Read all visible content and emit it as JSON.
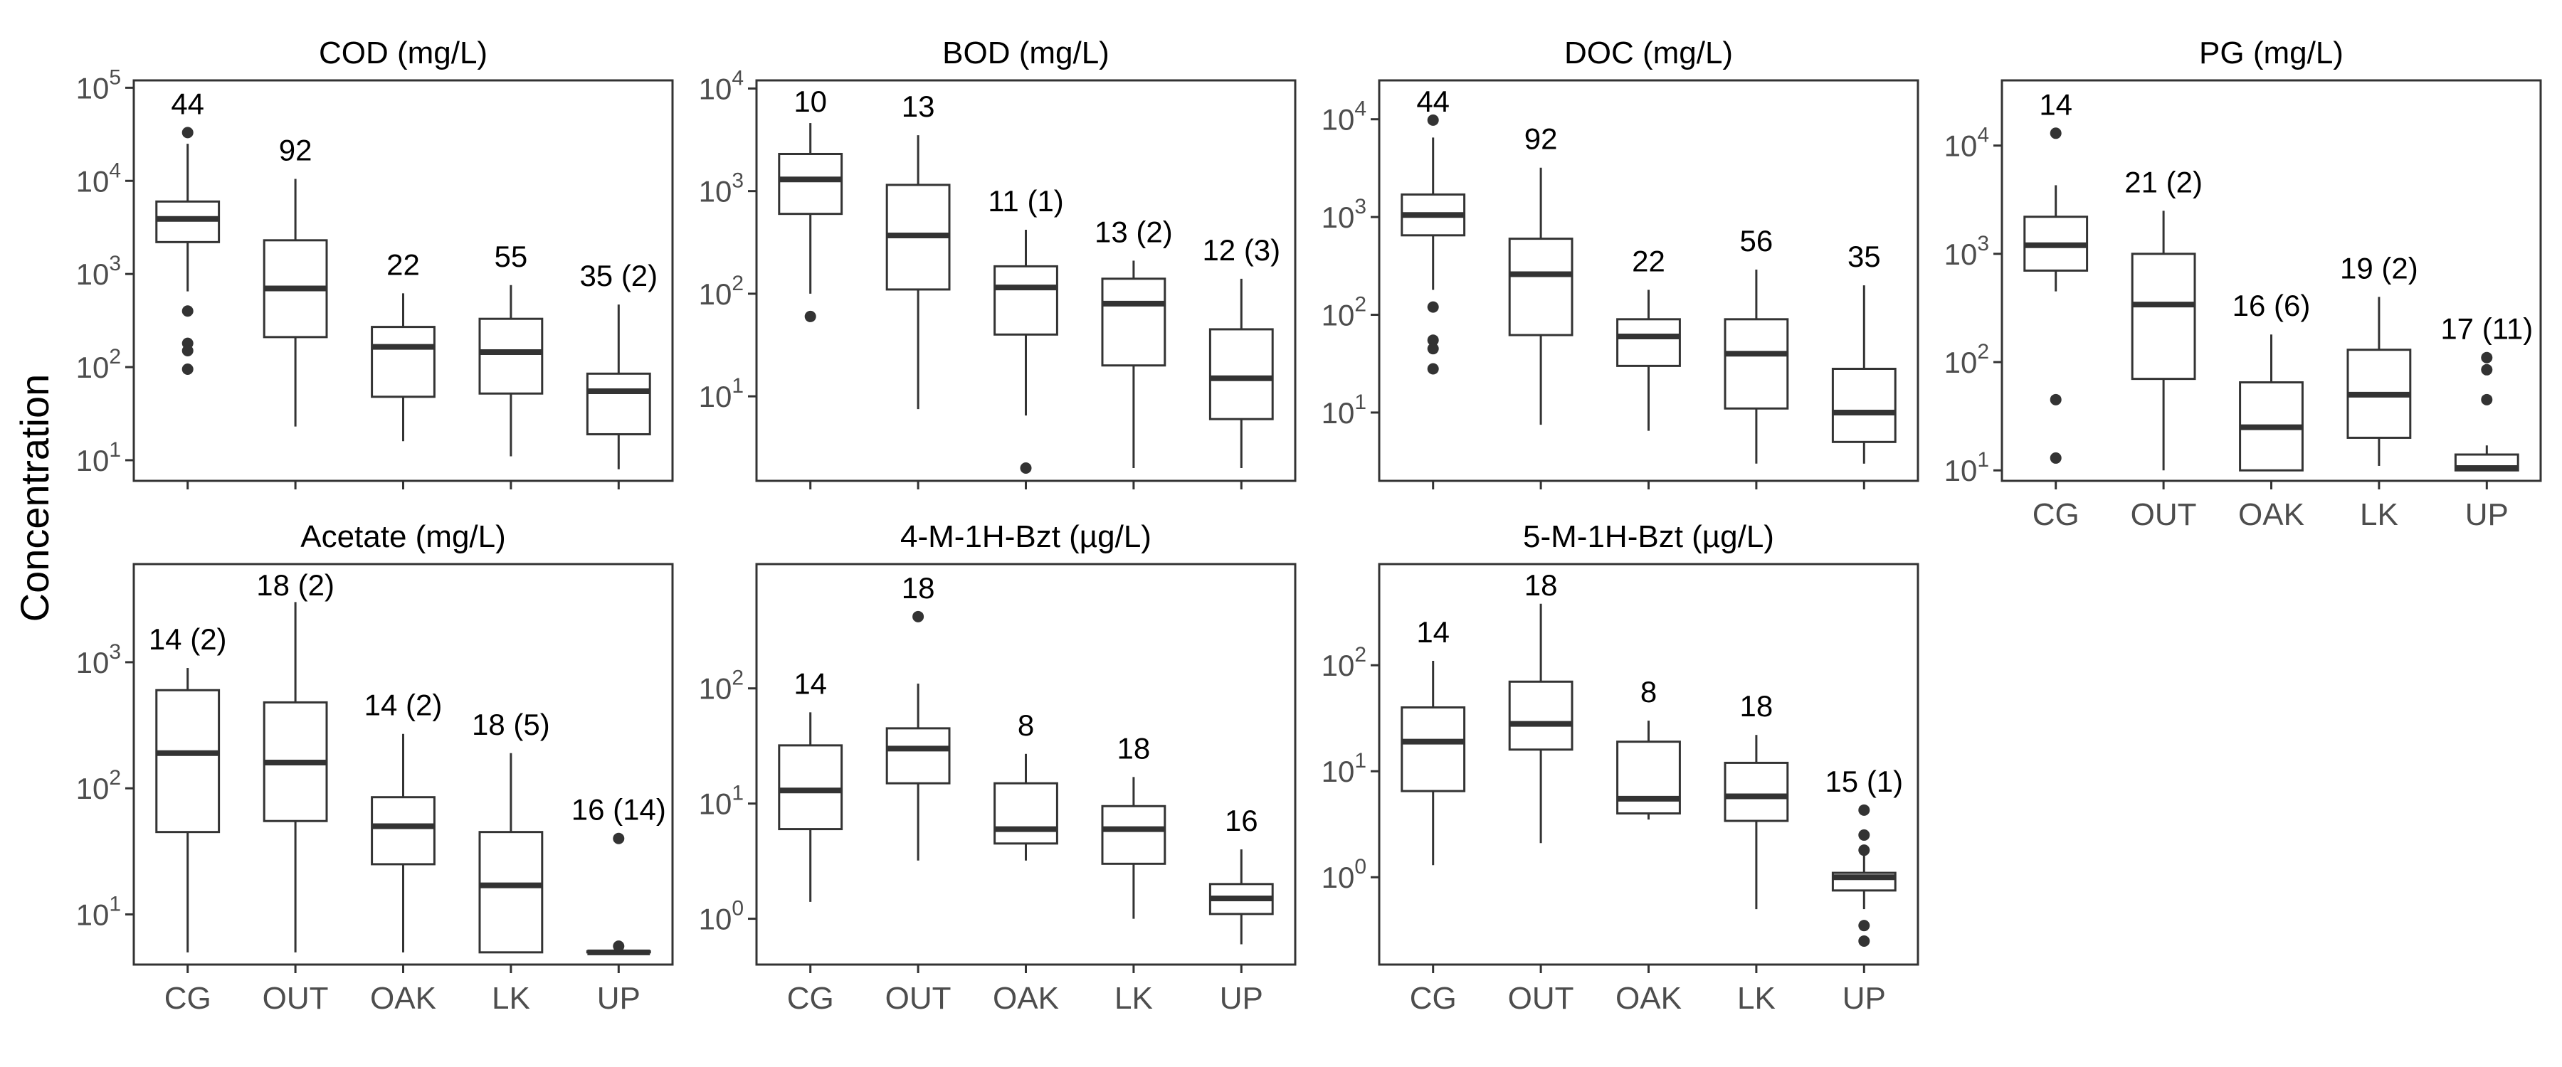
{
  "figure": {
    "ylabel": "Concentration",
    "categories": [
      "CG",
      "OUT",
      "OAK",
      "LK",
      "UP"
    ],
    "colors": {
      "box_line": "#333333",
      "median": "#333333",
      "frame": "#333333",
      "text": "#000000",
      "tick_text": "#4d4d4d",
      "background": "#ffffff"
    }
  },
  "chart_data": [
    {
      "type": "box",
      "title": "COD (mg/L)",
      "categories": [
        "CG",
        "OUT",
        "OAK",
        "LK",
        "UP"
      ],
      "scale": "log10",
      "ylim": [
        6,
        120000
      ],
      "yticks": [
        10,
        100,
        1000,
        10000,
        100000
      ],
      "ytick_labels": [
        [
          "10",
          "1"
        ],
        [
          "10",
          "2"
        ],
        [
          "10",
          "3"
        ],
        [
          "10",
          "4"
        ],
        [
          "10",
          "5"
        ]
      ],
      "show_x_labels": false,
      "boxes": [
        {
          "category": "CG",
          "label": "44",
          "whisker_low": 650,
          "q1": 2200,
          "median": 3900,
          "q3": 6000,
          "whisker_high": 25000,
          "outliers": [
            33000,
            400,
            180,
            150,
            95
          ]
        },
        {
          "category": "OUT",
          "label": "92",
          "whisker_low": 23,
          "q1": 210,
          "median": 700,
          "q3": 2300,
          "whisker_high": 10500,
          "outliers": []
        },
        {
          "category": "OAK",
          "label": "22",
          "whisker_low": 16,
          "q1": 48,
          "median": 165,
          "q3": 270,
          "whisker_high": 620,
          "outliers": []
        },
        {
          "category": "LK",
          "label": "55",
          "whisker_low": 11,
          "q1": 52,
          "median": 145,
          "q3": 330,
          "whisker_high": 760,
          "outliers": []
        },
        {
          "category": "UP",
          "label": "35 (2)",
          "whisker_low": 8,
          "q1": 19,
          "median": 55,
          "q3": 85,
          "whisker_high": 470,
          "outliers": []
        }
      ]
    },
    {
      "type": "box",
      "title": "BOD (mg/L)",
      "categories": [
        "CG",
        "OUT",
        "OAK",
        "LK",
        "UP"
      ],
      "scale": "log10",
      "ylim": [
        1.5,
        12000
      ],
      "yticks": [
        10,
        100,
        1000,
        10000
      ],
      "ytick_labels": [
        [
          "10",
          "1"
        ],
        [
          "10",
          "2"
        ],
        [
          "10",
          "3"
        ],
        [
          "10",
          "4"
        ]
      ],
      "show_x_labels": false,
      "boxes": [
        {
          "category": "CG",
          "label": "10",
          "whisker_low": 100,
          "q1": 600,
          "median": 1300,
          "q3": 2300,
          "whisker_high": 4600,
          "outliers": [
            60
          ]
        },
        {
          "category": "OUT",
          "label": "13",
          "whisker_low": 7.5,
          "q1": 110,
          "median": 370,
          "q3": 1150,
          "whisker_high": 3500,
          "outliers": []
        },
        {
          "category": "OAK",
          "label": "11 (1)",
          "whisker_low": 6.5,
          "q1": 40,
          "median": 115,
          "q3": 185,
          "whisker_high": 420,
          "outliers": [
            2
          ]
        },
        {
          "category": "LK",
          "label": "13 (2)",
          "whisker_low": 2,
          "q1": 20,
          "median": 80,
          "q3": 140,
          "whisker_high": 210,
          "outliers": []
        },
        {
          "category": "UP",
          "label": "12 (3)",
          "whisker_low": 2,
          "q1": 6,
          "median": 15,
          "q3": 45,
          "whisker_high": 140,
          "outliers": []
        }
      ]
    },
    {
      "type": "box",
      "title": "DOC (mg/L)",
      "categories": [
        "CG",
        "OUT",
        "OAK",
        "LK",
        "UP"
      ],
      "scale": "log10",
      "ylim": [
        2,
        25000
      ],
      "yticks": [
        10,
        100,
        1000,
        10000
      ],
      "ytick_labels": [
        [
          "10",
          "1"
        ],
        [
          "10",
          "2"
        ],
        [
          "10",
          "3"
        ],
        [
          "10",
          "4"
        ]
      ],
      "show_x_labels": false,
      "boxes": [
        {
          "category": "CG",
          "label": "44",
          "whisker_low": 180,
          "q1": 650,
          "median": 1050,
          "q3": 1700,
          "whisker_high": 6500,
          "outliers": [
            9800,
            120,
            55,
            45,
            28
          ]
        },
        {
          "category": "OUT",
          "label": "92",
          "whisker_low": 7.5,
          "q1": 62,
          "median": 260,
          "q3": 600,
          "whisker_high": 3200,
          "outliers": []
        },
        {
          "category": "OAK",
          "label": "22",
          "whisker_low": 6.5,
          "q1": 30,
          "median": 60,
          "q3": 90,
          "whisker_high": 180,
          "outliers": []
        },
        {
          "category": "LK",
          "label": "56",
          "whisker_low": 3,
          "q1": 11,
          "median": 40,
          "q3": 90,
          "whisker_high": 290,
          "outliers": []
        },
        {
          "category": "UP",
          "label": "35",
          "whisker_low": 3,
          "q1": 5,
          "median": 10,
          "q3": 28,
          "whisker_high": 200,
          "outliers": []
        }
      ]
    },
    {
      "type": "box",
      "title": "PG (mg/L)",
      "categories": [
        "CG",
        "OUT",
        "OAK",
        "LK",
        "UP"
      ],
      "scale": "log10",
      "ylim": [
        8,
        40000
      ],
      "yticks": [
        10,
        100,
        1000,
        10000
      ],
      "ytick_labels": [
        [
          "10",
          "1"
        ],
        [
          "10",
          "2"
        ],
        [
          "10",
          "3"
        ],
        [
          "10",
          "4"
        ]
      ],
      "show_x_labels": true,
      "boxes": [
        {
          "category": "CG",
          "label": "14",
          "whisker_low": 450,
          "q1": 700,
          "median": 1200,
          "q3": 2200,
          "whisker_high": 4300,
          "outliers": [
            13000,
            45,
            13
          ]
        },
        {
          "category": "OUT",
          "label": "21 (2)",
          "whisker_low": 10,
          "q1": 70,
          "median": 340,
          "q3": 1000,
          "whisker_high": 2500,
          "outliers": []
        },
        {
          "category": "OAK",
          "label": "16 (6)",
          "whisker_low": 10,
          "q1": 10,
          "median": 25,
          "q3": 65,
          "whisker_high": 180,
          "outliers": []
        },
        {
          "category": "LK",
          "label": "19 (2)",
          "whisker_low": 11,
          "q1": 20,
          "median": 50,
          "q3": 130,
          "whisker_high": 400,
          "outliers": []
        },
        {
          "category": "UP",
          "label": "17 (11)",
          "whisker_low": 10,
          "q1": 10,
          "median": 10.5,
          "q3": 14,
          "whisker_high": 17,
          "outliers": [
            110,
            85,
            45
          ]
        }
      ]
    },
    {
      "type": "box",
      "title": "Acetate (mg/L)",
      "categories": [
        "CG",
        "OUT",
        "OAK",
        "LK",
        "UP"
      ],
      "scale": "log10",
      "ylim": [
        4,
        6000
      ],
      "yticks": [
        10,
        100,
        1000
      ],
      "ytick_labels": [
        [
          "10",
          "1"
        ],
        [
          "10",
          "2"
        ],
        [
          "10",
          "3"
        ]
      ],
      "show_x_labels": true,
      "boxes": [
        {
          "category": "CG",
          "label": "14 (2)",
          "whisker_low": 5,
          "q1": 45,
          "median": 190,
          "q3": 600,
          "whisker_high": 900,
          "outliers": []
        },
        {
          "category": "OUT",
          "label": "18 (2)",
          "whisker_low": 5,
          "q1": 55,
          "median": 160,
          "q3": 480,
          "whisker_high": 3000,
          "outliers": []
        },
        {
          "category": "OAK",
          "label": "14 (2)",
          "whisker_low": 5,
          "q1": 25,
          "median": 50,
          "q3": 85,
          "whisker_high": 270,
          "outliers": []
        },
        {
          "category": "LK",
          "label": "18 (5)",
          "whisker_low": 5,
          "q1": 5,
          "median": 17,
          "q3": 45,
          "whisker_high": 190,
          "outliers": []
        },
        {
          "category": "UP",
          "label": "16 (14)",
          "whisker_low": 5,
          "q1": 5,
          "median": 5,
          "q3": 5.1,
          "whisker_high": 5.2,
          "outliers": [
            40,
            5.6
          ]
        }
      ]
    },
    {
      "type": "box",
      "title": "4-M-1H-Bzt (µg/L)",
      "categories": [
        "CG",
        "OUT",
        "OAK",
        "LK",
        "UP"
      ],
      "scale": "log10",
      "ylim": [
        0.4,
        1200
      ],
      "yticks": [
        1,
        10,
        100
      ],
      "ytick_labels": [
        [
          "10",
          "0"
        ],
        [
          "10",
          "1"
        ],
        [
          "10",
          "2"
        ]
      ],
      "show_x_labels": true,
      "boxes": [
        {
          "category": "CG",
          "label": "14",
          "whisker_low": 1.4,
          "q1": 6,
          "median": 13,
          "q3": 32,
          "whisker_high": 62,
          "outliers": []
        },
        {
          "category": "OUT",
          "label": "18",
          "whisker_low": 3.2,
          "q1": 15,
          "median": 30,
          "q3": 45,
          "whisker_high": 110,
          "outliers": [
            420
          ]
        },
        {
          "category": "OAK",
          "label": "8",
          "whisker_low": 3.2,
          "q1": 4.5,
          "median": 6,
          "q3": 15,
          "whisker_high": 27,
          "outliers": []
        },
        {
          "category": "LK",
          "label": "18",
          "whisker_low": 1,
          "q1": 3,
          "median": 6,
          "q3": 9.5,
          "whisker_high": 17,
          "outliers": []
        },
        {
          "category": "UP",
          "label": "16",
          "whisker_low": 0.6,
          "q1": 1.1,
          "median": 1.5,
          "q3": 2,
          "whisker_high": 4,
          "outliers": []
        }
      ]
    },
    {
      "type": "box",
      "title": "5-M-1H-Bzt (µg/L)",
      "categories": [
        "CG",
        "OUT",
        "OAK",
        "LK",
        "UP"
      ],
      "scale": "log10",
      "ylim": [
        0.15,
        900
      ],
      "yticks": [
        1,
        10,
        100
      ],
      "ytick_labels": [
        [
          "10",
          "0"
        ],
        [
          "10",
          "1"
        ],
        [
          "10",
          "2"
        ]
      ],
      "show_x_labels": true,
      "boxes": [
        {
          "category": "CG",
          "label": "14",
          "whisker_low": 1.3,
          "q1": 6.5,
          "median": 19,
          "q3": 40,
          "whisker_high": 110,
          "outliers": []
        },
        {
          "category": "OUT",
          "label": "18",
          "whisker_low": 2.1,
          "q1": 16,
          "median": 28,
          "q3": 70,
          "whisker_high": 380,
          "outliers": []
        },
        {
          "category": "OAK",
          "label": "8",
          "whisker_low": 3.5,
          "q1": 4,
          "median": 5.5,
          "q3": 19,
          "whisker_high": 30,
          "outliers": []
        },
        {
          "category": "LK",
          "label": "18",
          "whisker_low": 0.5,
          "q1": 3.4,
          "median": 5.8,
          "q3": 12,
          "whisker_high": 22,
          "outliers": []
        },
        {
          "category": "UP",
          "label": "15 (1)",
          "whisker_low": 0.5,
          "q1": 0.75,
          "median": 1.0,
          "q3": 1.1,
          "whisker_high": 1.6,
          "outliers": [
            4.3,
            2.5,
            1.8,
            0.35,
            0.25
          ]
        }
      ]
    }
  ]
}
